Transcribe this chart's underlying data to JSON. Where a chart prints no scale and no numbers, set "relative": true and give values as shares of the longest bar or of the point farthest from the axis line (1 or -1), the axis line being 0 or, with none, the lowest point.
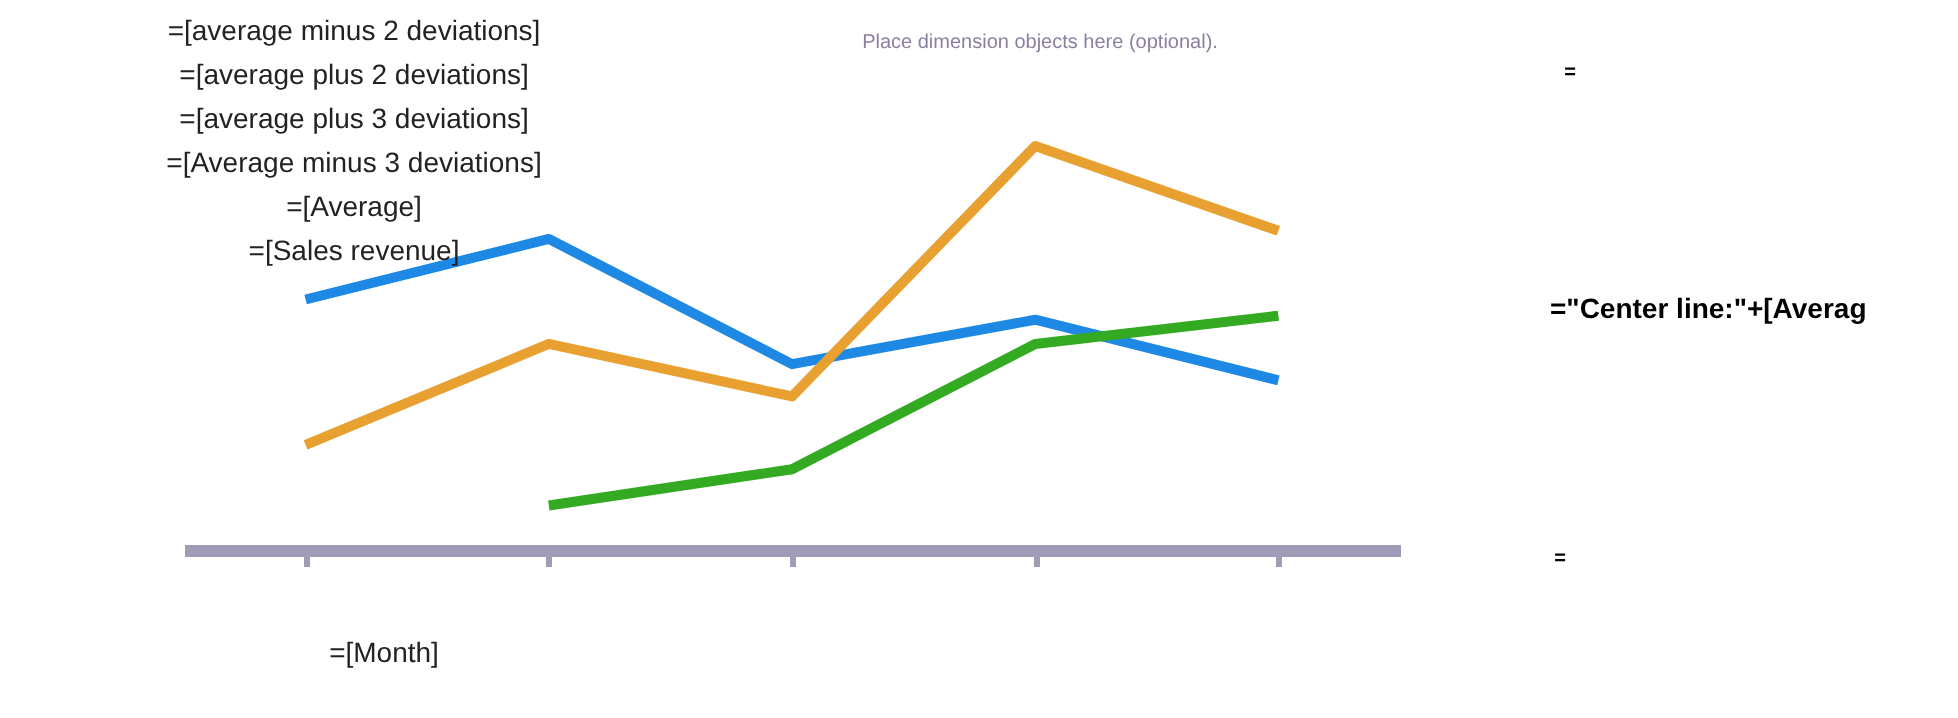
{
  "chart_data": {
    "type": "line",
    "relative": true,
    "line_style": "solid",
    "marker": "none",
    "xlabel": "=[Month]",
    "categories": [
      null,
      null,
      null,
      null,
      null
    ],
    "series": [
      {
        "color": "#1e88e5",
        "values": [
          0.62,
          0.77,
          0.46,
          0.57,
          0.42
        ]
      },
      {
        "color": "#e8a030",
        "values": [
          0.26,
          0.51,
          0.38,
          1,
          0.79
        ]
      },
      {
        "color": "#33aa22",
        "values": [
          null,
          0.11,
          0.2,
          0.51,
          0.58
        ]
      }
    ],
    "annotations": [
      "=[average minus 2 deviations]",
      "=[average plus 2 deviations]",
      "=[average plus 3 deviations]",
      "=[Average minus 3 deviations]",
      "=[Average]",
      "=[Sales revenue]",
      "Place dimension objects here (optional).",
      "=\"Center line:\"+[Averag",
      "=",
      "="
    ]
  }
}
